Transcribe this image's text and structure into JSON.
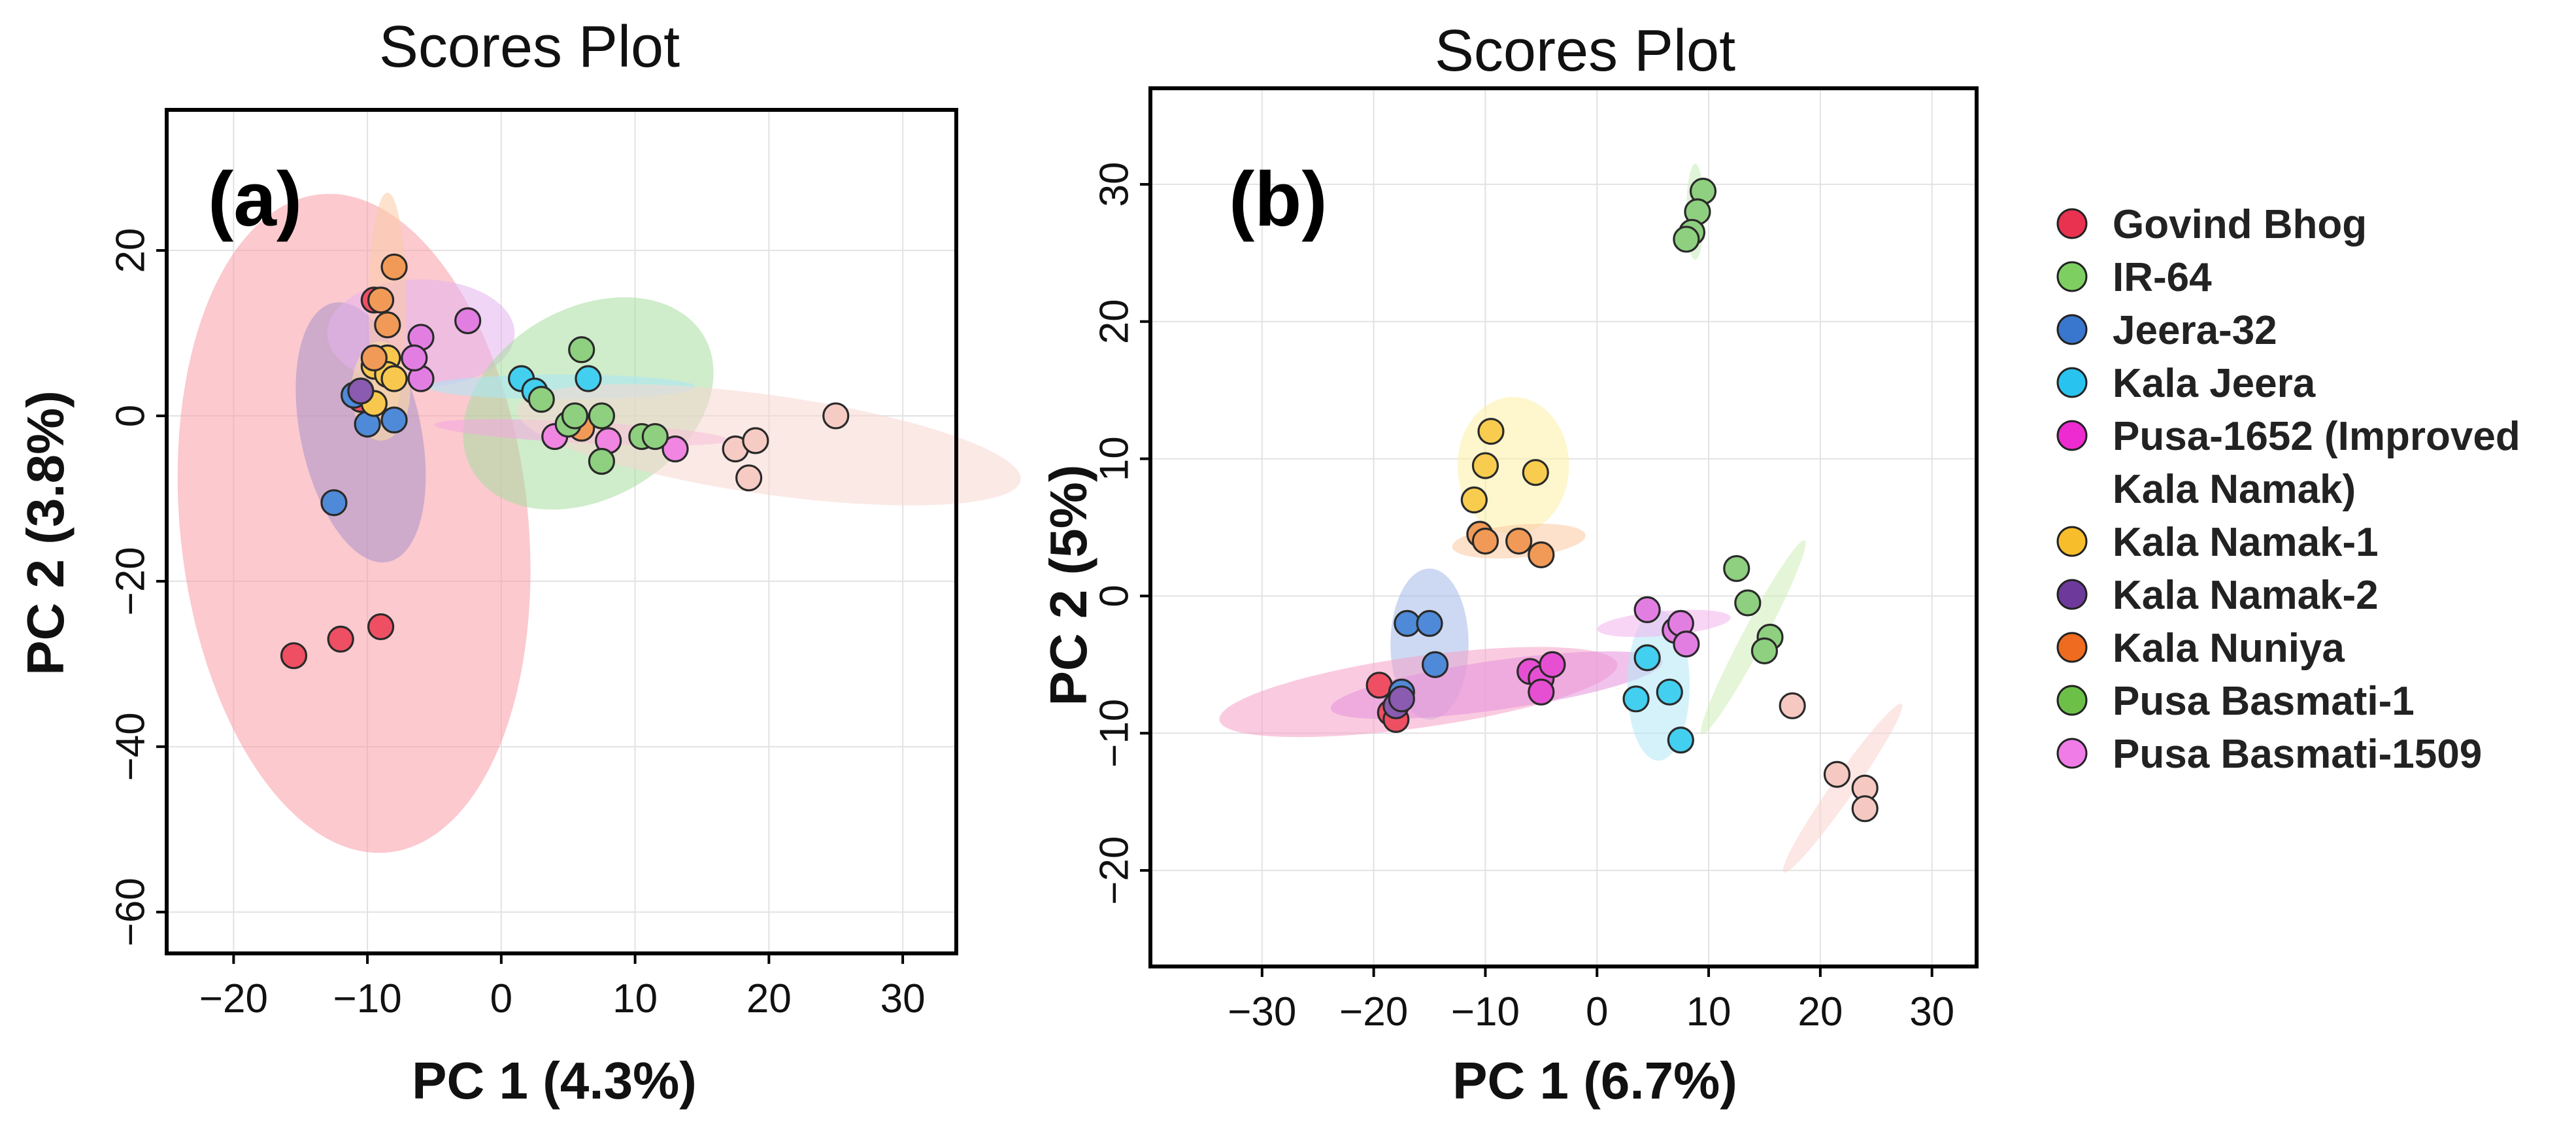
{
  "chart_data": [
    {
      "type": "scatter",
      "title": "Scores Plot",
      "panel_label": "(a)",
      "xlabel": "PC 1 (4.3%)",
      "ylabel": "PC 2 (3.8%)",
      "xlim": [
        -25,
        34
      ],
      "ylim": [
        -65,
        37
      ],
      "xticks": [
        -20,
        -10,
        0,
        10,
        20,
        30
      ],
      "yticks": [
        20,
        0,
        -20,
        -40,
        -60
      ],
      "grid": true,
      "ellipses": [
        {
          "series": "Govind Bhog",
          "cx": -11,
          "cy": -13,
          "rx": 13,
          "ry": 40,
          "angle": -6,
          "color": "#f79da6"
        },
        {
          "series": "Kala Namak-2",
          "cx": -10.5,
          "cy": -2,
          "rx": 4.5,
          "ry": 16,
          "angle": -12,
          "color": "#a991c8"
        },
        {
          "series": "Pusa Basmati-1509",
          "cx": -6,
          "cy": 10,
          "rx": 7,
          "ry": 6.5,
          "angle": 0,
          "color": "#e4b3ee"
        },
        {
          "series": "Kala Nuniya",
          "cx": -8.5,
          "cy": 13,
          "rx": 1.4,
          "ry": 14,
          "angle": 0,
          "color": "#fbcba5"
        },
        {
          "series": "Kala Namak-1",
          "cx": -9,
          "cy": 3,
          "rx": 2.2,
          "ry": 6,
          "angle": 0,
          "color": "#fde0a3"
        },
        {
          "series": "Pusa Basmati-1",
          "cx": 6.5,
          "cy": 1.5,
          "rx": 10,
          "ry": 11.5,
          "angle": -30,
          "color": "#a7dda0"
        },
        {
          "series": "Kala Jeera",
          "cx": 4.5,
          "cy": 3.5,
          "rx": 10,
          "ry": 1.5,
          "angle": 0,
          "color": "#a9e8f7"
        },
        {
          "series": "Pusa-1652 (Improved Kala Namak)",
          "cx": 6,
          "cy": -2,
          "rx": 11,
          "ry": 1.3,
          "angle": 3,
          "color": "#f4a6e2"
        },
        {
          "series": "IR-64",
          "cx": 20,
          "cy": -3.5,
          "rx": 19,
          "ry": 6,
          "angle": 8,
          "color": "#f8d7d2"
        }
      ],
      "series": [
        {
          "name": "Govind Bhog",
          "color": "#ef4f63",
          "points": [
            [
              -15.5,
              -29
            ],
            [
              -12,
              -27
            ],
            [
              -9,
              -25.5
            ],
            [
              -9.5,
              14
            ],
            [
              -10.5,
              2
            ]
          ]
        },
        {
          "name": "IR-64",
          "color": "#f6cbc4",
          "points": [
            [
              17.5,
              -4
            ],
            [
              19,
              -3
            ],
            [
              18.5,
              -7.5
            ],
            [
              25,
              0
            ]
          ]
        },
        {
          "name": "Jeera-32",
          "color": "#4f8ad8",
          "points": [
            [
              -12.5,
              -10.5
            ],
            [
              -10,
              -1
            ],
            [
              -8,
              -0.5
            ],
            [
              -11,
              2.5
            ]
          ]
        },
        {
          "name": "Kala Jeera",
          "color": "#43cfef",
          "points": [
            [
              1.5,
              4.5
            ],
            [
              2.5,
              3
            ],
            [
              6.5,
              4.5
            ]
          ]
        },
        {
          "name": "Pusa-1652 (Improved Kala Namak)",
          "color": "#f085e2",
          "points": [
            [
              4,
              -2.5
            ],
            [
              8,
              -3
            ],
            [
              13,
              -4
            ]
          ]
        },
        {
          "name": "Kala Namak-1",
          "color": "#f8c84e",
          "points": [
            [
              -9.5,
              6
            ],
            [
              -8.5,
              7
            ],
            [
              -9.5,
              1.5
            ],
            [
              -8.5,
              5
            ],
            [
              -8,
              4.5
            ]
          ]
        },
        {
          "name": "Kala Namak-2",
          "color": "#8a5bb0",
          "points": [
            [
              -10.5,
              3
            ]
          ]
        },
        {
          "name": "Kala Nuniya",
          "color": "#f19a57",
          "points": [
            [
              -8,
              18
            ],
            [
              -9,
              14
            ],
            [
              -8.5,
              11
            ],
            [
              -9.5,
              7
            ],
            [
              6,
              -1.5
            ]
          ]
        },
        {
          "name": "Pusa Basmati-1",
          "color": "#8ed07f",
          "points": [
            [
              6,
              8
            ],
            [
              7.5,
              0
            ],
            [
              7.5,
              -5.5
            ],
            [
              5,
              -1
            ],
            [
              3,
              2
            ],
            [
              10.5,
              -2.5
            ],
            [
              11.5,
              -2.5
            ],
            [
              5.5,
              0
            ]
          ]
        },
        {
          "name": "Pusa Basmati-1509",
          "color": "#e27ee2",
          "points": [
            [
              -6,
              9.5
            ],
            [
              -6,
              4.5
            ],
            [
              -2.5,
              11.5
            ],
            [
              -6.5,
              7
            ]
          ]
        }
      ]
    },
    {
      "type": "scatter",
      "title": "Scores Plot",
      "panel_label": "(b)",
      "xlabel": "PC 1 (6.7%)",
      "ylabel": "PC 2 (5%)",
      "xlim": [
        -40,
        34
      ],
      "ylim": [
        -27,
        37
      ],
      "xticks": [
        -30,
        -20,
        -10,
        0,
        10,
        20,
        30
      ],
      "yticks": [
        30,
        20,
        10,
        0,
        -10,
        -20
      ],
      "grid": true,
      "ellipses": [
        {
          "series": "IR-64",
          "cx": 8.8,
          "cy": 28,
          "rx": 0.8,
          "ry": 3.5,
          "angle": 0,
          "color": "#c7ebb9"
        },
        {
          "series": "Kala Namak-1",
          "cx": -7.5,
          "cy": 9.5,
          "rx": 5,
          "ry": 5,
          "angle": 0,
          "color": "#fdf0a6"
        },
        {
          "series": "Kala Nuniya",
          "cx": -7,
          "cy": 4,
          "rx": 6,
          "ry": 1.2,
          "angle": -5,
          "color": "#fbc8a0"
        },
        {
          "series": "Jeera-32",
          "cx": -15,
          "cy": -3.5,
          "rx": 3.5,
          "ry": 5.5,
          "angle": 0,
          "color": "#a4b9ea"
        },
        {
          "series": "Govind Bhog",
          "cx": -16,
          "cy": -7,
          "rx": 18,
          "ry": 2.6,
          "angle": -8,
          "color": "#f6a1c7"
        },
        {
          "series": "Pusa-1652 (Improved Kala Namak)",
          "cx": -9,
          "cy": -6.5,
          "rx": 15,
          "ry": 1.8,
          "angle": -8,
          "color": "#e692dc"
        },
        {
          "series": "Kala Jeera",
          "cx": 5.5,
          "cy": -6.5,
          "rx": 2.8,
          "ry": 5.5,
          "angle": 0,
          "color": "#b3e8f6"
        },
        {
          "series": "Pusa Basmati-1509",
          "cx": 6,
          "cy": -2,
          "rx": 6,
          "ry": 0.9,
          "angle": -5,
          "color": "#f3b3ec"
        },
        {
          "series": "Pusa Basmati-1",
          "cx": 14,
          "cy": -3,
          "rx": 1,
          "ry": 8,
          "angle": 28,
          "color": "#cfeeb8"
        },
        {
          "series": "IR-64",
          "cx": 22,
          "cy": -14,
          "rx": 1,
          "ry": 7.5,
          "angle": 35,
          "color": "#fad3d0"
        }
      ],
      "series": [
        {
          "name": "Govind Bhog",
          "color": "#ef4f63",
          "points": [
            [
              -19.5,
              -6.5
            ],
            [
              -18.5,
              -8.5
            ],
            [
              -18,
              -9
            ]
          ]
        },
        {
          "name": "IR-64",
          "color": "#f5c9c2",
          "points": [
            [
              17.5,
              -8
            ],
            [
              21.5,
              -13
            ],
            [
              24,
              -14
            ],
            [
              24,
              -15.5
            ]
          ]
        },
        {
          "name": "Jeera-32",
          "color": "#4f8ad8",
          "points": [
            [
              -17,
              -2
            ],
            [
              -15,
              -2
            ],
            [
              -14.5,
              -5
            ],
            [
              -17.5,
              -7
            ]
          ]
        },
        {
          "name": "Kala Jeera",
          "color": "#43cfef",
          "points": [
            [
              4.5,
              -4.5
            ],
            [
              3.5,
              -7.5
            ],
            [
              6.5,
              -7
            ],
            [
              7.5,
              -10.5
            ]
          ]
        },
        {
          "name": "Pusa-1652 (Improved Kala Namak)",
          "color": "#e64fd2",
          "points": [
            [
              -6,
              -5.5
            ],
            [
              -5,
              -6
            ],
            [
              -4,
              -5
            ],
            [
              -5,
              -7
            ]
          ]
        },
        {
          "name": "Kala Namak-1",
          "color": "#f8cc4e",
          "points": [
            [
              -9.5,
              12
            ],
            [
              -10,
              9.5
            ],
            [
              -5.5,
              9
            ],
            [
              -11,
              7
            ]
          ]
        },
        {
          "name": "Kala Namak-2",
          "color": "#8a5bb0",
          "points": [
            [
              -18,
              -8
            ],
            [
              -17.5,
              -7.5
            ]
          ]
        },
        {
          "name": "Kala Nuniya",
          "color": "#f19a57",
          "points": [
            [
              -10.5,
              4.5
            ],
            [
              -10,
              4
            ],
            [
              -7,
              4
            ],
            [
              -5,
              3
            ]
          ]
        },
        {
          "name": "Pusa Basmati-1",
          "color": "#8ed07f",
          "points": [
            [
              9.5,
              29.5
            ],
            [
              9,
              28
            ],
            [
              8.5,
              26.5
            ],
            [
              8,
              26
            ],
            [
              12.5,
              2
            ],
            [
              13.5,
              -0.5
            ],
            [
              15.5,
              -3
            ],
            [
              15,
              -4
            ]
          ]
        },
        {
          "name": "Pusa Basmati-1509",
          "color": "#e27ee2",
          "points": [
            [
              4.5,
              -1
            ],
            [
              7,
              -2.5
            ],
            [
              7.5,
              -2
            ],
            [
              8,
              -3.5
            ]
          ]
        }
      ]
    }
  ],
  "legend": [
    {
      "label": "Govind Bhog",
      "color": "#e8324f"
    },
    {
      "label": "IR-64",
      "color": "#7dcf62"
    },
    {
      "label": "Jeera-32",
      "color": "#3977cf"
    },
    {
      "label": "Kala Jeera",
      "color": "#29c3ef"
    },
    {
      "label": "Pusa-1652 (Improved",
      "label_cont": "Kala Namak)",
      "color": "#ee2bd0"
    },
    {
      "label": "Kala Namak-1",
      "color": "#f7bd2b"
    },
    {
      "label": "Kala Namak-2",
      "color": "#6d3a9c"
    },
    {
      "label": "Kala Nuniya",
      "color": "#ef6b1f"
    },
    {
      "label": "Pusa Basmati-1",
      "color": "#6cc048"
    },
    {
      "label": "Pusa Basmati-1509",
      "color": "#f07ce8"
    }
  ]
}
